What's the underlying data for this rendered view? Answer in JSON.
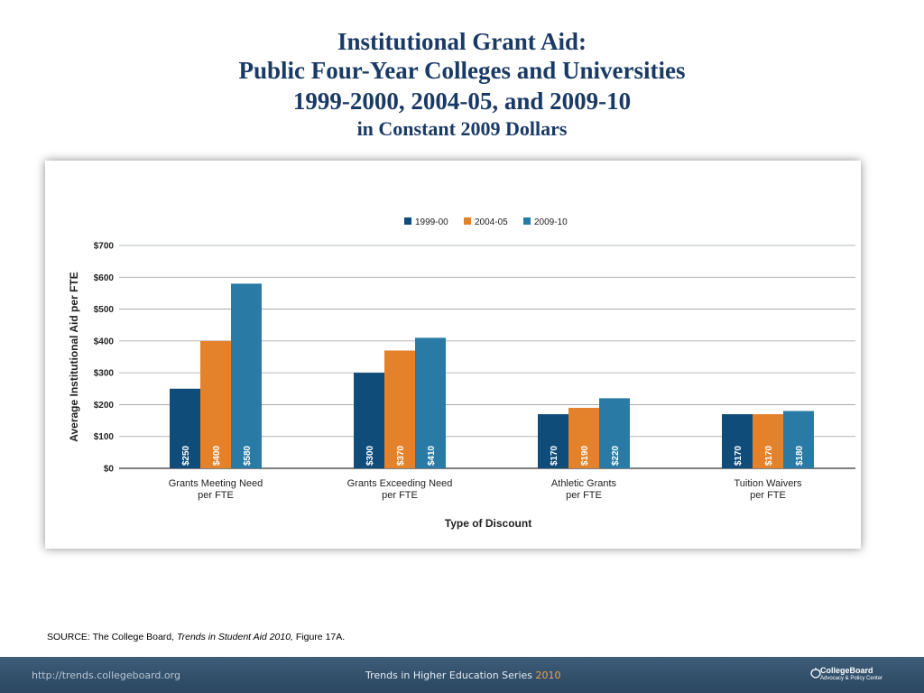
{
  "title": {
    "line1": "Institutional Grant Aid:",
    "line2": "Public Four-Year Colleges and Universities",
    "line3": "1999-2000, 2004-05, and 2009-10",
    "line4": "in Constant 2009 Dollars"
  },
  "chart_data": {
    "type": "bar",
    "categories": [
      [
        "Grants Meeting Need",
        "per FTE"
      ],
      [
        "Grants Exceeding Need",
        "per FTE"
      ],
      [
        "Athletic Grants",
        "per FTE"
      ],
      [
        "Tuition Waivers",
        "per FTE"
      ]
    ],
    "series": [
      {
        "name": "1999-00",
        "color": "#0f4c7a",
        "values": [
          250,
          300,
          170,
          170
        ],
        "labels": [
          "$250",
          "$300",
          "$170",
          "$170"
        ]
      },
      {
        "name": "2004-05",
        "color": "#e3822a",
        "values": [
          400,
          370,
          190,
          170
        ],
        "labels": [
          "$400",
          "$370",
          "$190",
          "$170"
        ]
      },
      {
        "name": "2009-10",
        "color": "#2a7aa6",
        "values": [
          580,
          410,
          220,
          180
        ],
        "labels": [
          "$580",
          "$410",
          "$220",
          "$180"
        ]
      }
    ],
    "xlabel": "Type of Discount",
    "ylabel": "Average Institutional Aid per FTE",
    "ylim": [
      0,
      700
    ],
    "yticks": [
      0,
      100,
      200,
      300,
      400,
      500,
      600,
      700
    ],
    "ytick_labels": [
      "$0",
      "$100",
      "$200",
      "$300",
      "$400",
      "$500",
      "$600",
      "$700"
    ],
    "grid": true,
    "legend_position": "top-center",
    "gridline_color": "#9aa0a6"
  },
  "source": {
    "prefix": "SOURCE: The College Board, ",
    "italic": "Trends in Student Aid 2010,",
    "suffix": " Figure 17A."
  },
  "footer": {
    "url": "http://trends.collegeboard.org",
    "series_text": "Trends in Higher Education Series",
    "series_year": "2010",
    "logo_name": "CollegeBoard",
    "logo_sub": "Advocacy & Policy Center",
    "logo_icon": "collegeboard-acorn-icon"
  }
}
